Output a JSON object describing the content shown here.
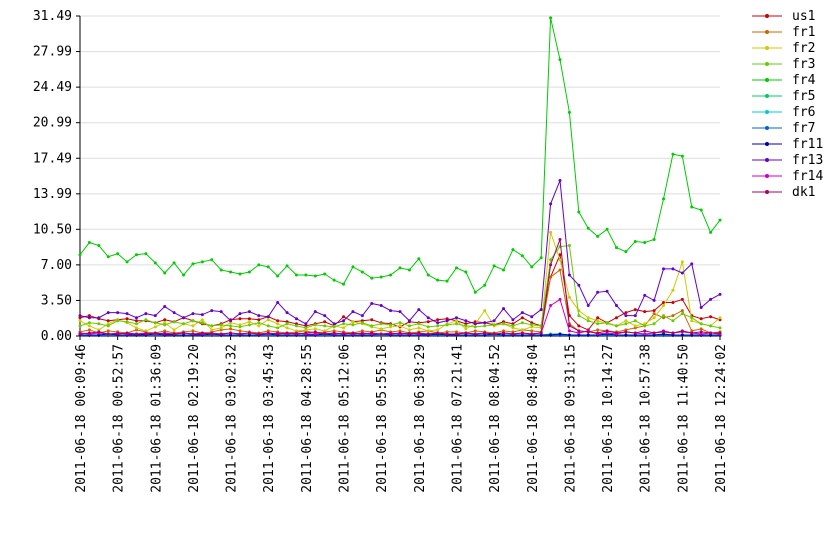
{
  "chart_data": {
    "type": "line",
    "categories": [
      "2011-06-18 00:09:46",
      null,
      null,
      null,
      "2011-06-18 00:52:57",
      null,
      null,
      null,
      "2011-06-18 01:36:09",
      null,
      null,
      null,
      "2011-06-18 02:19:20",
      null,
      null,
      null,
      "2011-06-18 03:02:32",
      null,
      null,
      null,
      "2011-06-18 03:45:43",
      null,
      null,
      null,
      "2011-06-18 04:28:55",
      null,
      null,
      null,
      "2011-06-18 05:12:06",
      null,
      null,
      null,
      "2011-06-18 05:55:18",
      null,
      null,
      null,
      "2011-06-18 06:38:29",
      null,
      null,
      null,
      "2011-06-18 07:21:41",
      null,
      null,
      null,
      "2011-06-18 08:04:52",
      null,
      null,
      null,
      "2011-06-18 08:48:04",
      null,
      null,
      null,
      "2011-06-18 09:31:15",
      null,
      null,
      null,
      "2011-06-18 10:14:27",
      null,
      null,
      null,
      "2011-06-18 10:57:38",
      null,
      null,
      null,
      "2011-06-18 11:40:50",
      null,
      null,
      null,
      "2011-06-18 12:24:02"
    ],
    "ylim": [
      0,
      31.49
    ],
    "yticks": [
      {
        "value": 0,
        "label": "0.00"
      },
      {
        "value": 3.5,
        "label": "3.50"
      },
      {
        "value": 7,
        "label": "7.00"
      },
      {
        "value": 10.5,
        "label": "10.50"
      },
      13.99,
      17.49,
      20.99,
      24.49,
      27.99,
      31.49
    ],
    "grid": true,
    "legend": "right",
    "series": [
      {
        "name": "us1",
        "color": "#cc0000",
        "values": [
          1.8,
          2.0,
          1.7,
          1.5,
          1.6,
          1.7,
          1.5,
          1.5,
          1.3,
          1.6,
          1.4,
          1.8,
          1.5,
          1.2,
          1.0,
          1.2,
          1.6,
          1.7,
          1.7,
          1.6,
          1.9,
          1.5,
          1.4,
          1.2,
          1.0,
          1.2,
          1.4,
          1.0,
          1.9,
          1.4,
          1.5,
          1.6,
          1.3,
          1.2,
          0.9,
          1.4,
          1.3,
          1.4,
          1.6,
          1.7,
          1.5,
          1.2,
          1.4,
          1.3,
          1.1,
          1.4,
          1.2,
          1.8,
          1.3,
          1.0,
          5.8,
          8.0,
          2.0,
          1.0,
          0.6,
          1.8,
          1.3,
          1.8,
          2.3,
          2.6,
          2.4,
          2.5,
          3.3,
          3.3,
          3.6,
          2.0,
          1.7,
          1.9,
          1.6
        ]
      },
      {
        "name": "fr1",
        "color": "#cc6600",
        "values": [
          0.4,
          0.6,
          0.3,
          0.5,
          0.4,
          0.3,
          0.6,
          0.4,
          0.3,
          0.5,
          0.3,
          0.4,
          0.5,
          0.3,
          0.4,
          0.6,
          0.7,
          0.5,
          0.4,
          0.3,
          0.5,
          0.4,
          0.3,
          0.4,
          0.5,
          0.3,
          0.4,
          0.5,
          0.4,
          0.3,
          0.5,
          0.4,
          0.6,
          0.4,
          0.5,
          0.3,
          0.4,
          0.5,
          0.3,
          0.4,
          0.4,
          0.3,
          0.5,
          0.4,
          0.3,
          0.5,
          0.4,
          0.6,
          0.5,
          0.4,
          5.8,
          6.5,
          1.2,
          0.5,
          0.4,
          0.6,
          0.5,
          0.4,
          0.6,
          0.8,
          1.0,
          2.2,
          1.8,
          2.0,
          2.5,
          0.5,
          0.7,
          0.3,
          0.4
        ]
      },
      {
        "name": "fr2",
        "color": "#cccc00",
        "values": [
          1.5,
          1.0,
          0.6,
          1.2,
          1.6,
          1.3,
          0.8,
          0.5,
          0.9,
          1.3,
          0.6,
          1.2,
          1.0,
          1.6,
          0.6,
          0.8,
          1.3,
          1.1,
          1.4,
          1.0,
          1.6,
          1.2,
          0.8,
          0.5,
          0.6,
          0.7,
          0.5,
          1.0,
          0.8,
          1.4,
          1.2,
          0.9,
          0.7,
          0.9,
          1.0,
          0.6,
          0.8,
          0.5,
          0.6,
          1.2,
          1.5,
          0.7,
          1.2,
          2.5,
          1.0,
          1.2,
          0.8,
          0.6,
          0.9,
          0.8,
          10.2,
          7.5,
          3.8,
          2.5,
          1.8,
          1.5,
          1.2,
          1.0,
          1.5,
          1.0,
          1.2,
          1.8,
          3.0,
          4.5,
          7.3,
          1.5,
          1.2,
          1.0,
          1.8
        ]
      },
      {
        "name": "fr3",
        "color": "#66cc00",
        "values": [
          1.0,
          1.3,
          1.2,
          1.0,
          1.5,
          1.4,
          1.2,
          1.6,
          1.3,
          1.1,
          1.4,
          1.2,
          1.5,
          1.3,
          1.0,
          1.1,
          1.0,
          0.9,
          1.1,
          1.3,
          1.0,
          0.8,
          1.2,
          1.0,
          0.8,
          1.1,
          1.0,
          0.9,
          1.2,
          1.1,
          1.3,
          1.0,
          1.2,
          1.1,
          1.3,
          1.0,
          1.2,
          0.9,
          1.0,
          1.1,
          1.2,
          1.0,
          0.9,
          1.0,
          1.1,
          1.2,
          1.0,
          1.3,
          1.1,
          1.0,
          7.5,
          8.8,
          8.9,
          2.0,
          1.5,
          1.2,
          1.3,
          1.0,
          1.2,
          1.5,
          1.0,
          1.2,
          2.0,
          1.5,
          2.2,
          1.8,
          1.2,
          1.0,
          0.8
        ]
      },
      {
        "name": "fr4",
        "color": "#00cc00",
        "values": [
          8.0,
          9.2,
          8.9,
          7.8,
          8.1,
          7.3,
          8.0,
          8.1,
          7.2,
          6.2,
          7.2,
          6.0,
          7.1,
          7.3,
          7.5,
          6.5,
          6.3,
          6.1,
          6.3,
          7.0,
          6.8,
          5.9,
          6.9,
          6.0,
          6.0,
          5.9,
          6.1,
          5.5,
          5.1,
          6.8,
          6.3,
          5.7,
          5.8,
          6.0,
          6.7,
          6.5,
          7.6,
          6.0,
          5.5,
          5.4,
          6.7,
          6.3,
          4.3,
          5.0,
          6.9,
          6.5,
          8.5,
          7.9,
          6.8,
          7.7,
          31.3,
          27.2,
          22.0,
          12.2,
          10.6,
          9.8,
          10.5,
          8.7,
          8.3,
          9.3,
          9.2,
          9.5,
          13.5,
          17.9,
          17.7,
          12.7,
          12.4,
          10.2,
          11.4
        ]
      },
      {
        "name": "fr5",
        "color": "#00cc66",
        "values": [
          0.1,
          0.1,
          0.1,
          0.1,
          0.1,
          0.1,
          0.1,
          0.1,
          0.1,
          0.1,
          0.1,
          0.1,
          0.1,
          0.1,
          0.1,
          0.1,
          0.1,
          0.1,
          0.1,
          0.1,
          0.1,
          0.1,
          0.1,
          0.1,
          0.1,
          0.1,
          0.1,
          0.1,
          0.1,
          0.1,
          0.1,
          0.1,
          0.1,
          0.1,
          0.1,
          0.1,
          0.1,
          0.1,
          0.1,
          0.1,
          0.1,
          0.1,
          0.1,
          0.1,
          0.1,
          0.1,
          0.1,
          0.1,
          0.1,
          0.1,
          0.2,
          0.2,
          0.1,
          0.1,
          0.1,
          0.1,
          0.1,
          0.1,
          0.1,
          0.1,
          0.1,
          0.1,
          0.1,
          0.1,
          0.1,
          0.1,
          0.1,
          0.1,
          0.1
        ]
      },
      {
        "name": "fr6",
        "color": "#00cccc",
        "values": [
          0.05,
          0.05,
          0.05,
          0.05,
          0.05,
          0.05,
          0.05,
          0.05,
          0.05,
          0.05,
          0.05,
          0.05,
          0.05,
          0.05,
          0.05,
          0.05,
          0.05,
          0.05,
          0.05,
          0.05,
          0.05,
          0.05,
          0.05,
          0.05,
          0.05,
          0.05,
          0.05,
          0.05,
          0.05,
          0.05,
          0.05,
          0.05,
          0.05,
          0.05,
          0.05,
          0.05,
          0.05,
          0.05,
          0.05,
          0.05,
          0.05,
          0.05,
          0.05,
          0.05,
          0.05,
          0.05,
          0.05,
          0.05,
          0.05,
          0.05,
          0.1,
          0.1,
          0.05,
          0.05,
          0.05,
          0.05,
          0.05,
          0.05,
          0.05,
          0.05,
          0.05,
          0.05,
          0.05,
          0.05,
          0.05,
          0.05,
          0.05,
          0.05,
          0.05
        ]
      },
      {
        "name": "fr7",
        "color": "#0066cc",
        "values": [
          0.05,
          0.05,
          0.05,
          0.05,
          0.05,
          0.05,
          0.05,
          0.05,
          0.05,
          0.05,
          0.05,
          0.05,
          0.05,
          0.05,
          0.05,
          0.05,
          0.05,
          0.05,
          0.05,
          0.05,
          0.05,
          0.05,
          0.05,
          0.05,
          0.05,
          0.05,
          0.05,
          0.05,
          0.05,
          0.05,
          0.05,
          0.05,
          0.05,
          0.05,
          0.05,
          0.05,
          0.05,
          0.05,
          0.05,
          0.05,
          0.05,
          0.05,
          0.05,
          0.05,
          0.05,
          0.05,
          0.05,
          0.05,
          0.05,
          0.05,
          0.05,
          0.05,
          0.05,
          0.05,
          0.05,
          0.05,
          0.05,
          0.05,
          0.05,
          0.05,
          0.05,
          0.05,
          0.05,
          0.05,
          0.05,
          0.05,
          0.05,
          0.05,
          0.05
        ]
      },
      {
        "name": "fr11",
        "color": "#0000aa",
        "values": [
          0.1,
          0.1,
          0.1,
          0.2,
          0.1,
          0.1,
          0.1,
          0.1,
          0.2,
          0.1,
          0.1,
          0.1,
          0.1,
          0.1,
          0.2,
          0.1,
          0.1,
          0.1,
          0.1,
          0.1,
          0.2,
          0.1,
          0.1,
          0.1,
          0.1,
          0.1,
          0.2,
          0.1,
          0.1,
          0.1,
          0.1,
          0.1,
          0.2,
          0.1,
          0.1,
          0.1,
          0.1,
          0.1,
          0.2,
          0.1,
          0.1,
          0.1,
          0.1,
          0.1,
          0.2,
          0.1,
          0.1,
          0.1,
          0.1,
          0.1,
          0.1,
          0.2,
          0.1,
          0.1,
          0.1,
          0.1,
          0.2,
          0.1,
          0.1,
          0.1,
          0.1,
          0.1,
          0.2,
          0.1,
          0.1,
          0.1,
          0.1,
          0.1,
          0.1
        ]
      },
      {
        "name": "fr13",
        "color": "#6600cc",
        "values": [
          2.0,
          1.8,
          1.8,
          2.3,
          2.3,
          2.2,
          1.8,
          2.2,
          2.0,
          2.9,
          2.3,
          1.8,
          2.2,
          2.1,
          2.5,
          2.4,
          1.5,
          2.2,
          2.4,
          2.0,
          1.9,
          3.3,
          2.3,
          1.7,
          1.2,
          2.4,
          2.0,
          1.2,
          1.5,
          2.4,
          2.0,
          3.2,
          3.0,
          2.5,
          2.4,
          1.5,
          2.6,
          1.8,
          1.3,
          1.5,
          1.8,
          1.5,
          1.2,
          1.3,
          1.5,
          2.7,
          1.6,
          2.3,
          1.9,
          2.6,
          13.0,
          15.3,
          6.0,
          5.0,
          3.0,
          4.3,
          4.4,
          3.0,
          2.0,
          2.0,
          4.0,
          3.5,
          6.6,
          6.6,
          6.2,
          7.1,
          2.8,
          3.6,
          4.1
        ]
      },
      {
        "name": "fr14",
        "color": "#cc00cc",
        "values": [
          0.3,
          0.2,
          0.3,
          0.2,
          0.3,
          0.2,
          0.2,
          0.3,
          0.2,
          0.3,
          0.2,
          0.3,
          0.2,
          0.2,
          0.3,
          0.2,
          0.3,
          0.2,
          0.3,
          0.2,
          0.2,
          0.3,
          0.2,
          0.3,
          0.2,
          0.2,
          0.3,
          0.2,
          0.3,
          0.2,
          0.3,
          0.2,
          0.2,
          0.3,
          0.2,
          0.3,
          0.2,
          0.2,
          0.3,
          0.2,
          0.2,
          0.3,
          0.2,
          0.3,
          0.2,
          0.3,
          0.2,
          0.3,
          0.2,
          0.3,
          3.0,
          3.6,
          0.5,
          0.3,
          0.5,
          0.2,
          0.3,
          0.2,
          0.4,
          0.3,
          0.2,
          0.3,
          0.5,
          0.3,
          0.4,
          0.3,
          0.2,
          0.3,
          0.2
        ]
      },
      {
        "name": "dk1",
        "color": "#aa0066",
        "values": [
          0.2,
          0.3,
          0.4,
          0.2,
          0.2,
          0.3,
          0.2,
          0.2,
          0.3,
          0.2,
          0.2,
          0.3,
          0.2,
          0.3,
          0.2,
          0.2,
          0.3,
          0.2,
          0.3,
          0.2,
          0.3,
          0.2,
          0.3,
          0.2,
          0.3,
          0.4,
          0.2,
          0.3,
          0.2,
          0.3,
          0.2,
          0.3,
          0.2,
          0.2,
          0.3,
          0.2,
          0.3,
          0.2,
          0.3,
          0.2,
          0.2,
          0.3,
          0.2,
          0.3,
          0.2,
          0.3,
          0.2,
          0.3,
          0.2,
          0.3,
          7.0,
          9.5,
          1.0,
          0.5,
          0.4,
          0.3,
          0.5,
          0.3,
          0.4,
          0.3,
          0.5,
          0.3,
          0.4,
          0.3,
          0.5,
          0.3,
          0.4,
          0.3,
          0.3
        ]
      }
    ]
  }
}
